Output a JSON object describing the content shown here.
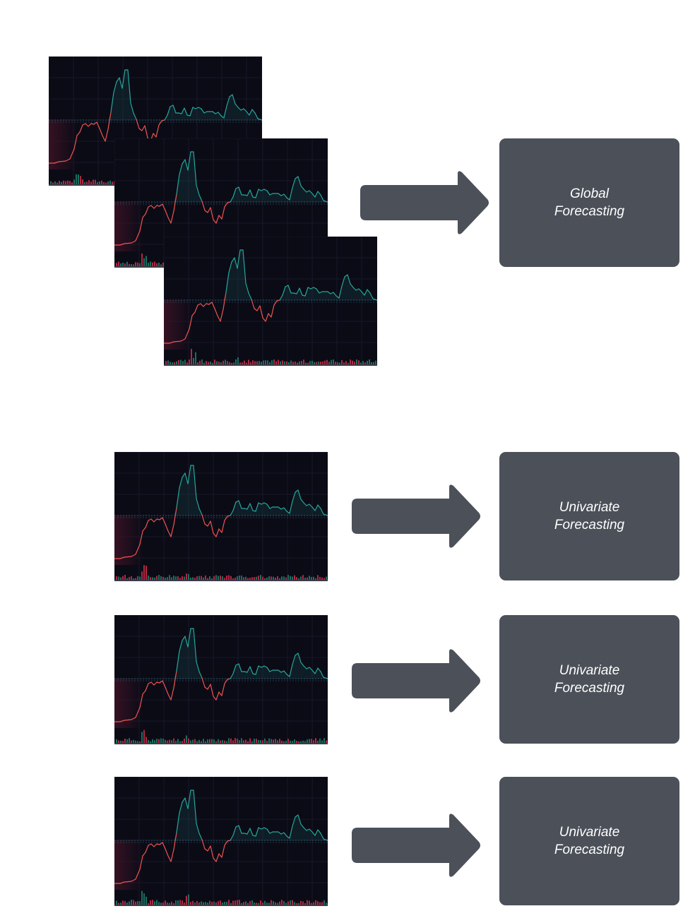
{
  "diagram": {
    "global": {
      "label_line1": "Global",
      "label_line2": "Forecasting"
    },
    "univariate": [
      {
        "label_line1": "Univariate",
        "label_line2": "Forecasting"
      },
      {
        "label_line1": "Univariate",
        "label_line2": "Forecasting"
      },
      {
        "label_line1": "Univariate",
        "label_line2": "Forecasting"
      }
    ]
  },
  "colors": {
    "box": "#4b5059",
    "box_text": "#ffffff",
    "chart_bg": "#0b0b16",
    "line_up": "#26a69a",
    "line_down": "#ef5350",
    "volume_up": "#1b6e5f",
    "volume_down": "#b2283f"
  }
}
